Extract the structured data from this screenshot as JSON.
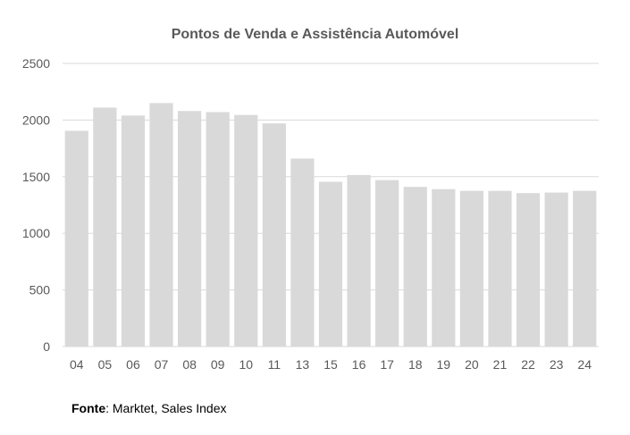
{
  "chart_data": {
    "type": "bar",
    "title": "Pontos de Venda e Assistência Automóvel",
    "xlabel": "",
    "ylabel": "",
    "categories": [
      "04",
      "05",
      "06",
      "07",
      "08",
      "09",
      "10",
      "11",
      "13",
      "15",
      "16",
      "17",
      "18",
      "19",
      "20",
      "21",
      "22",
      "23",
      "24"
    ],
    "values": [
      1905,
      2110,
      2040,
      2150,
      2080,
      2070,
      2045,
      1970,
      1660,
      1455,
      1515,
      1470,
      1410,
      1390,
      1375,
      1375,
      1355,
      1360,
      1375
    ],
    "ylim": [
      0,
      2500
    ],
    "yticks": [
      0,
      500,
      1000,
      1500,
      2000,
      2500
    ],
    "grid": true,
    "legend": "none",
    "bar_color": "#d9d9d9",
    "grid_color": "#d9d9d9"
  },
  "source": {
    "label": "Fonte",
    "text": ": Marktet, Sales Index"
  }
}
